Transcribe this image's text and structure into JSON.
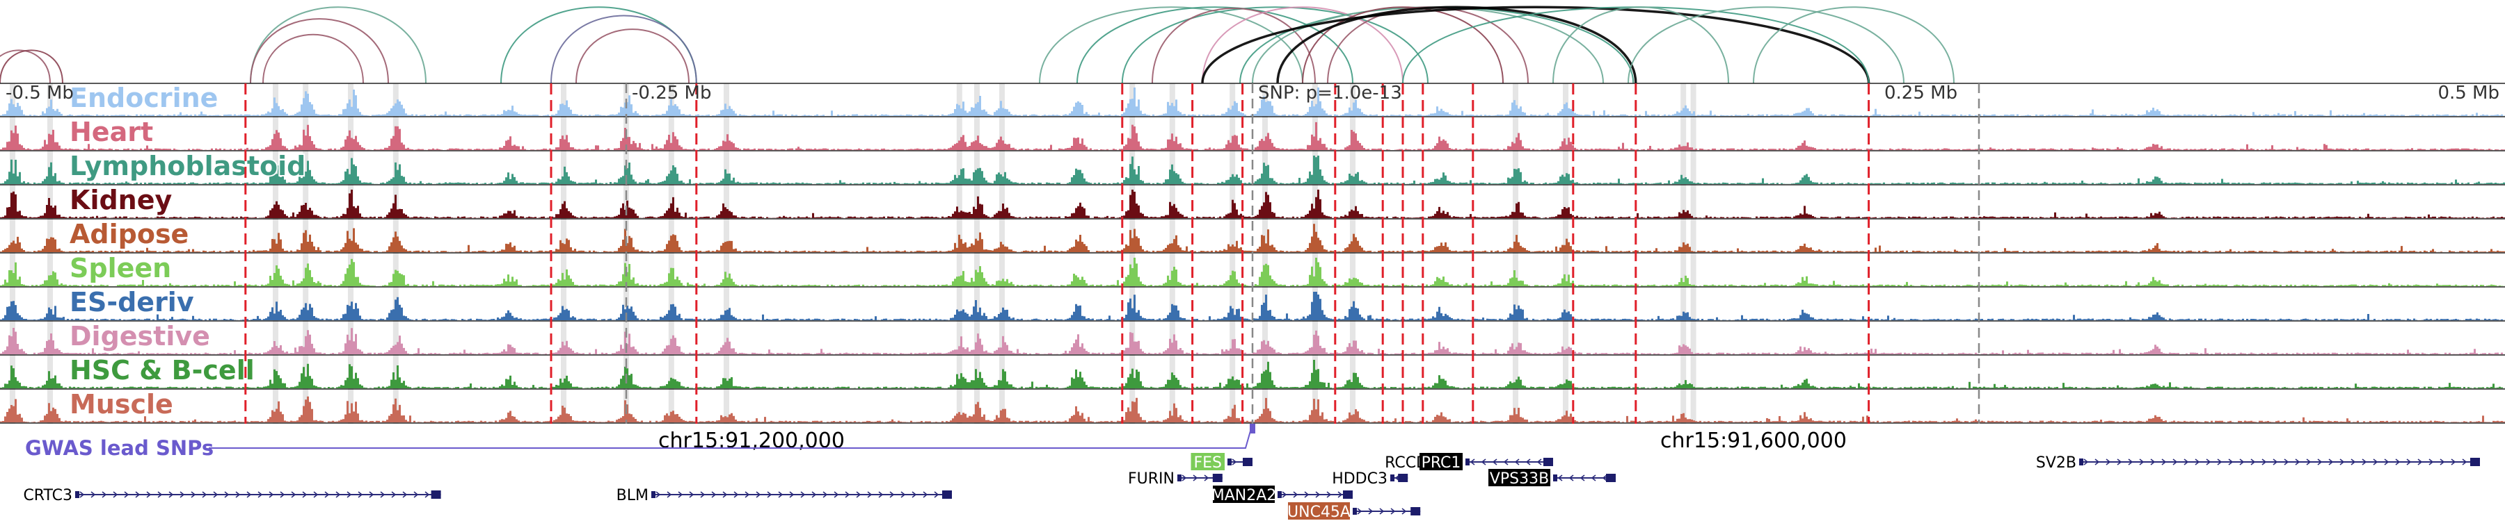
{
  "chart_data": {
    "type": "genome-browser-track",
    "region": {
      "chrom": "chr15",
      "start": 90900000,
      "end": 91900000
    },
    "distance_axis": {
      "labels": [
        {
          "text": "-0.5 Mb",
          "pos": 90900000
        },
        {
          "text": "-0.25 Mb",
          "pos": 91150000
        },
        {
          "text": "SNP: p=1.0e-13",
          "pos": 91400000
        },
        {
          "text": "0.25 Mb",
          "pos": 91650000
        },
        {
          "text": "0.5 Mb",
          "pos": 91900000
        }
      ]
    },
    "coordinate_labels": [
      {
        "text": "chr15:91,200,000",
        "pos": 91200000
      },
      {
        "text": "chr15:91,600,000",
        "pos": 91600000
      }
    ],
    "lead_snp": {
      "pos": 91400000,
      "label": "GWAS lead SNPs",
      "p_value": "1.0e-13",
      "color": "#6a5acd"
    },
    "tracks": [
      {
        "name": "Endocrine",
        "color": "#9ec6f0",
        "seed": 11
      },
      {
        "name": "Heart",
        "color": "#d4687e",
        "seed": 23
      },
      {
        "name": "Lymphoblastoid",
        "color": "#3f9a82",
        "seed": 37
      },
      {
        "name": "Kidney",
        "color": "#6b0d14",
        "seed": 41
      },
      {
        "name": "Adipose",
        "color": "#b85a34",
        "seed": 53
      },
      {
        "name": "Spleen",
        "color": "#7ccc58",
        "seed": 67
      },
      {
        "name": "ES-deriv",
        "color": "#3a6fae",
        "seed": 71
      },
      {
        "name": "Digestive",
        "color": "#d48fb0",
        "seed": 83
      },
      {
        "name": "HSC & B-cell",
        "color": "#3e9a3e",
        "seed": 97
      },
      {
        "name": "Muscle",
        "color": "#c86a58",
        "seed": 101
      }
    ],
    "peak_clusters": [
      {
        "pos": 90905000,
        "h": 0.8
      },
      {
        "pos": 90920000,
        "h": 0.6
      },
      {
        "pos": 91010000,
        "h": 0.6
      },
      {
        "pos": 91022000,
        "h": 0.75
      },
      {
        "pos": 91040000,
        "h": 0.9
      },
      {
        "pos": 91058000,
        "h": 0.7
      },
      {
        "pos": 91103000,
        "h": 0.35
      },
      {
        "pos": 91125000,
        "h": 0.5
      },
      {
        "pos": 91150000,
        "h": 0.7
      },
      {
        "pos": 91168000,
        "h": 0.6
      },
      {
        "pos": 91190000,
        "h": 0.45
      },
      {
        "pos": 91283000,
        "h": 0.5
      },
      {
        "pos": 91290000,
        "h": 0.6
      },
      {
        "pos": 91300000,
        "h": 0.5
      },
      {
        "pos": 91330000,
        "h": 0.55
      },
      {
        "pos": 91352000,
        "h": 0.95
      },
      {
        "pos": 91368000,
        "h": 0.6
      },
      {
        "pos": 91392000,
        "h": 0.5
      },
      {
        "pos": 91405000,
        "h": 0.7
      },
      {
        "pos": 91425000,
        "h": 0.9
      },
      {
        "pos": 91440000,
        "h": 0.5
      },
      {
        "pos": 91475000,
        "h": 0.4
      },
      {
        "pos": 91505000,
        "h": 0.5
      },
      {
        "pos": 91525000,
        "h": 0.35
      },
      {
        "pos": 91572000,
        "h": 0.3
      },
      {
        "pos": 91620000,
        "h": 0.3
      },
      {
        "pos": 91760000,
        "h": 0.25
      }
    ],
    "highlight_bands": [
      90905000,
      90920000,
      91010000,
      91022000,
      91040000,
      91058000,
      91125000,
      91150000,
      91168000,
      91190000,
      91283000,
      91290000,
      91300000,
      91352000,
      91368000,
      91392000,
      91405000,
      91425000,
      91440000,
      91505000,
      91525000,
      91572000,
      91576000
    ],
    "red_dashed_lines": [
      90998000,
      91120000,
      91178000,
      91348000,
      91376000,
      91396000,
      91433000,
      91452000,
      91460000,
      91468000,
      91488000,
      91528000,
      91553000,
      91646000
    ],
    "gray_dashed_lines": [
      91150000,
      91400000,
      91690000
    ],
    "loops": [
      {
        "a": 90895000,
        "b": 90920000,
        "color": "#9a5a6a"
      },
      {
        "a": 90900000,
        "b": 90925000,
        "color": "#8a4050"
      },
      {
        "a": 91000000,
        "b": 91070000,
        "color": "#6aa895"
      },
      {
        "a": 91000000,
        "b": 91055000,
        "color": "#9a5a6a"
      },
      {
        "a": 91005000,
        "b": 91045000,
        "color": "#9a5a6a"
      },
      {
        "a": 91100000,
        "b": 91178000,
        "color": "#3f9a82"
      },
      {
        "a": 91120000,
        "b": 91178000,
        "color": "#6a6a9a"
      },
      {
        "a": 91130000,
        "b": 91175000,
        "color": "#9a5a6a"
      },
      {
        "a": 91315000,
        "b": 91420000,
        "color": "#6aa895"
      },
      {
        "a": 91330000,
        "b": 91440000,
        "color": "#3f9a82"
      },
      {
        "a": 91348000,
        "b": 91470000,
        "color": "#3f9a82"
      },
      {
        "a": 91360000,
        "b": 91425000,
        "color": "#9a5a6a"
      },
      {
        "a": 91380000,
        "b": 91460000,
        "color": "#d48fb0"
      },
      {
        "a": 91395000,
        "b": 91552000,
        "color": "#3f9a82"
      },
      {
        "a": 91400000,
        "b": 91540000,
        "color": "#6aa895"
      },
      {
        "a": 91420000,
        "b": 91500000,
        "color": "#8a4050"
      },
      {
        "a": 91430000,
        "b": 91510000,
        "color": "#9a5a6a"
      },
      {
        "a": 91380000,
        "b": 91646000,
        "color": "#000000"
      },
      {
        "a": 91410000,
        "b": 91553000,
        "color": "#000000"
      },
      {
        "a": 91460000,
        "b": 91646000,
        "color": "#3f9a82"
      },
      {
        "a": 91520000,
        "b": 91590000,
        "color": "#6aa895"
      },
      {
        "a": 91550000,
        "b": 91660000,
        "color": "#6aa895"
      },
      {
        "a": 91600000,
        "b": 91680000,
        "color": "#6aa895"
      }
    ],
    "genes": [
      {
        "name": "CRTC3",
        "start": 90930000,
        "end": 91076000,
        "row": 2,
        "strand": "+",
        "label_style": "plain"
      },
      {
        "name": "BLM",
        "start": 91160000,
        "end": 91280000,
        "row": 2,
        "strand": "+",
        "label_style": "plain"
      },
      {
        "name": "FES",
        "start": 91390000,
        "end": 91400000,
        "row": 0,
        "strand": "+",
        "label_style": "box",
        "box_color": "#7ccc58"
      },
      {
        "name": "FURIN",
        "start": 91370000,
        "end": 91388000,
        "row": 1,
        "strand": "+",
        "label_style": "plain"
      },
      {
        "name": "MAN2A2",
        "start": 91410000,
        "end": 91440000,
        "row": 2,
        "strand": "+",
        "label_style": "box",
        "box_color": "#000000"
      },
      {
        "name": "UNC45A",
        "start": 91440000,
        "end": 91467000,
        "row": 3,
        "strand": "+",
        "label_style": "box",
        "box_color": "#b85a34"
      },
      {
        "name": "RCCD1",
        "start": 91475000,
        "end": 91482000,
        "row": 0,
        "strand": "+",
        "label_style": "plain"
      },
      {
        "name": "HDDC3",
        "start": 91455000,
        "end": 91462000,
        "row": 1,
        "strand": "-",
        "label_style": "plain"
      },
      {
        "name": "PRC1",
        "start": 91485000,
        "end": 91520000,
        "row": 0,
        "strand": "-",
        "label_style": "box",
        "box_color": "#000000"
      },
      {
        "name": "VPS33B",
        "start": 91520000,
        "end": 91545000,
        "row": 1,
        "strand": "-",
        "label_style": "box",
        "box_color": "#000000"
      },
      {
        "name": "SV2B",
        "start": 91730000,
        "end": 91890000,
        "row": 0,
        "strand": "+",
        "label_style": "plain"
      }
    ]
  }
}
